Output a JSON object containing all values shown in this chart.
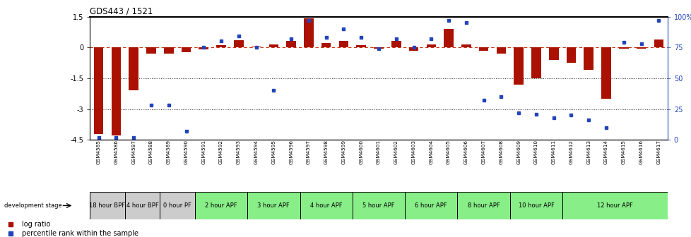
{
  "title": "GDS443 / 1521",
  "samples": [
    "GSM4585",
    "GSM4586",
    "GSM4587",
    "GSM4588",
    "GSM4589",
    "GSM4590",
    "GSM4591",
    "GSM4592",
    "GSM4593",
    "GSM4594",
    "GSM4595",
    "GSM4596",
    "GSM4597",
    "GSM4598",
    "GSM4599",
    "GSM4600",
    "GSM4601",
    "GSM4602",
    "GSM4603",
    "GSM4604",
    "GSM4605",
    "GSM4606",
    "GSM4607",
    "GSM4608",
    "GSM4609",
    "GSM4610",
    "GSM4611",
    "GSM4612",
    "GSM4613",
    "GSM4614",
    "GSM4615",
    "GSM4616",
    "GSM4617"
  ],
  "log_ratio": [
    -4.2,
    -4.3,
    -2.1,
    -0.3,
    -0.3,
    -0.25,
    -0.1,
    0.1,
    0.35,
    0.05,
    0.15,
    0.3,
    1.4,
    0.2,
    0.3,
    0.1,
    -0.05,
    0.3,
    -0.15,
    0.15,
    0.9,
    0.15,
    -0.15,
    -0.3,
    -1.8,
    -1.5,
    -0.6,
    -0.75,
    -1.1,
    -2.5,
    -0.05,
    -0.05,
    0.4
  ],
  "percentile_rank": [
    2,
    2,
    2,
    28,
    28,
    7,
    75,
    80,
    84,
    75,
    40,
    82,
    97,
    83,
    90,
    83,
    74,
    82,
    75,
    82,
    97,
    95,
    32,
    35,
    22,
    21,
    18,
    20,
    16,
    10,
    79,
    78,
    97
  ],
  "stage_groups": [
    {
      "label": "18 hour BPF",
      "start": 0,
      "end": 2,
      "color": "#cccccc"
    },
    {
      "label": "4 hour BPF",
      "start": 2,
      "end": 4,
      "color": "#cccccc"
    },
    {
      "label": "0 hour PF",
      "start": 4,
      "end": 6,
      "color": "#cccccc"
    },
    {
      "label": "2 hour APF",
      "start": 6,
      "end": 9,
      "color": "#88ee88"
    },
    {
      "label": "3 hour APF",
      "start": 9,
      "end": 12,
      "color": "#88ee88"
    },
    {
      "label": "4 hour APF",
      "start": 12,
      "end": 15,
      "color": "#88ee88"
    },
    {
      "label": "5 hour APF",
      "start": 15,
      "end": 18,
      "color": "#88ee88"
    },
    {
      "label": "6 hour APF",
      "start": 18,
      "end": 21,
      "color": "#88ee88"
    },
    {
      "label": "8 hour APF",
      "start": 21,
      "end": 24,
      "color": "#88ee88"
    },
    {
      "label": "10 hour APF",
      "start": 24,
      "end": 27,
      "color": "#88ee88"
    },
    {
      "label": "12 hour APF",
      "start": 27,
      "end": 33,
      "color": "#88ee88"
    }
  ],
  "ylim": [
    -4.5,
    1.5
  ],
  "y_ticks_left": [
    -4.5,
    -3.0,
    -1.5,
    0.0,
    1.5
  ],
  "y_ticks_right": [
    0,
    25,
    50,
    75,
    100
  ],
  "bar_color": "#aa1100",
  "dot_color": "#2244bb",
  "zero_line_color": "#cc3311",
  "dotted_line_color": "#333333",
  "background_color": "#ffffff",
  "fig_width": 9.79,
  "fig_height": 3.36,
  "dpi": 100
}
